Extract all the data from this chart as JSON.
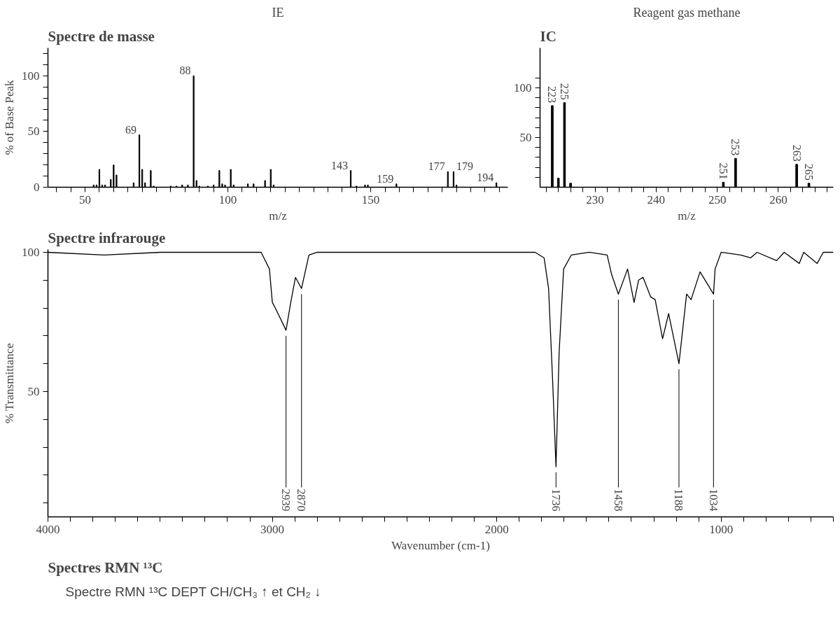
{
  "chart_data": [
    {
      "type": "bar",
      "title": "Spectre de masse",
      "subtitle": "IE",
      "xlabel": "m/z",
      "ylabel": "% of Base Peak",
      "x": [
        53,
        54,
        55,
        56,
        57,
        59,
        60,
        61,
        67,
        69,
        70,
        71,
        73,
        74,
        80,
        82,
        84,
        86,
        88,
        89,
        90,
        93,
        95,
        97,
        98,
        99,
        101,
        102,
        107,
        109,
        113,
        115,
        116,
        143,
        145,
        148,
        149,
        159,
        177,
        179,
        180,
        194
      ],
      "series": [
        {
          "color": "#000000",
          "values": [
            2,
            2,
            16,
            2,
            2,
            7,
            20,
            11,
            4,
            47,
            16,
            4,
            15,
            1,
            1,
            1,
            2,
            2,
            100,
            6,
            1,
            1,
            2,
            15,
            3,
            2,
            16,
            2,
            3,
            3,
            6,
            16,
            2,
            15,
            1,
            2,
            2,
            3,
            14,
            14,
            2,
            4
          ]
        }
      ],
      "value_labels": [
        null,
        null,
        null,
        null,
        null,
        null,
        null,
        null,
        null,
        "69",
        null,
        null,
        null,
        null,
        null,
        null,
        null,
        null,
        "88",
        null,
        null,
        null,
        null,
        null,
        null,
        null,
        null,
        null,
        null,
        null,
        null,
        null,
        null,
        "143",
        null,
        null,
        null,
        "159",
        "177",
        "179",
        null,
        "194"
      ],
      "xlim": [
        37,
        198
      ],
      "ylim": [
        0,
        125
      ],
      "xticks": [
        {
          "value": 40,
          "label": null
        },
        {
          "value": 45,
          "label": null
        },
        50,
        {
          "value": 55,
          "label": null
        },
        {
          "value": 60,
          "label": null
        },
        {
          "value": 65,
          "label": null
        },
        {
          "value": 70,
          "label": null
        },
        {
          "value": 75,
          "label": null
        },
        {
          "value": 80,
          "label": null
        },
        {
          "value": 85,
          "label": null
        },
        {
          "value": 90,
          "label": null
        },
        {
          "value": 95,
          "label": null
        },
        100,
        {
          "value": 105,
          "label": null
        },
        {
          "value": 110,
          "label": null
        },
        {
          "value": 115,
          "label": null
        },
        {
          "value": 120,
          "label": null
        },
        {
          "value": 125,
          "label": null
        },
        {
          "value": 130,
          "label": null
        },
        {
          "value": 135,
          "label": null
        },
        {
          "value": 140,
          "label": null
        },
        {
          "value": 145,
          "label": null
        },
        150,
        {
          "value": 155,
          "label": null
        },
        {
          "value": 160,
          "label": null
        },
        {
          "value": 165,
          "label": null
        },
        {
          "value": 170,
          "label": null
        },
        {
          "value": 175,
          "label": null
        },
        {
          "value": 180,
          "label": null
        },
        {
          "value": 185,
          "label": null
        },
        {
          "value": 190,
          "label": null
        },
        {
          "value": 195,
          "label": null
        }
      ],
      "yticks": [
        0,
        {
          "value": 10,
          "label": null
        },
        {
          "value": 20,
          "label": null
        },
        {
          "value": 30,
          "label": null
        },
        {
          "value": 40,
          "label": null
        },
        50,
        {
          "value": 60,
          "label": null
        },
        {
          "value": 70,
          "label": null
        },
        {
          "value": 80,
          "label": null
        },
        {
          "value": 90,
          "label": null
        },
        100,
        {
          "value": 110,
          "label": null
        },
        {
          "value": 120,
          "label": null
        }
      ]
    },
    {
      "type": "bar",
      "title": "IC",
      "subtitle": "Reagent gas methane",
      "xlabel": "m/z",
      "x": [
        223,
        224,
        225,
        226,
        251,
        253,
        263,
        265
      ],
      "series": [
        {
          "color": "#000000",
          "values": [
            82,
            9,
            85,
            4,
            5,
            29,
            23,
            4
          ]
        }
      ],
      "value_labels": [
        "223",
        null,
        "225",
        null,
        "251",
        "253",
        "263",
        "265"
      ],
      "xlim": [
        221,
        269
      ],
      "ylim": [
        0,
        140
      ],
      "xticks": [
        {
          "value": 222,
          "label": null
        },
        {
          "value": 224,
          "label": null
        },
        {
          "value": 226,
          "label": null
        },
        {
          "value": 228,
          "label": null
        },
        230,
        {
          "value": 232,
          "label": null
        },
        {
          "value": 234,
          "label": null
        },
        {
          "value": 236,
          "label": null
        },
        {
          "value": 238,
          "label": null
        },
        240,
        {
          "value": 242,
          "label": null
        },
        {
          "value": 244,
          "label": null
        },
        {
          "value": 246,
          "label": null
        },
        {
          "value": 248,
          "label": null
        },
        250,
        {
          "value": 252,
          "label": null
        },
        {
          "value": 254,
          "label": null
        },
        {
          "value": 256,
          "label": null
        },
        {
          "value": 258,
          "label": null
        },
        260,
        {
          "value": 262,
          "label": null
        },
        {
          "value": 264,
          "label": null
        },
        {
          "value": 266,
          "label": null
        },
        {
          "value": 268,
          "label": null
        }
      ],
      "yticks": [
        {
          "value": 10,
          "label": null
        },
        {
          "value": 20,
          "label": null
        },
        {
          "value": 30,
          "label": null
        },
        {
          "value": 40,
          "label": null
        },
        50,
        {
          "value": 60,
          "label": null
        },
        {
          "value": 70,
          "label": null
        },
        {
          "value": 80,
          "label": null
        },
        {
          "value": 90,
          "label": null
        },
        100,
        {
          "value": 110,
          "label": null
        }
      ]
    },
    {
      "type": "line",
      "title": "Spectre infrarouge",
      "xlabel": "Wavenumber (cm-1)",
      "ylabel": "% Transmittance",
      "x": [
        4000,
        3750,
        3500,
        3050,
        3013,
        3000,
        2987,
        2939,
        2918,
        2897,
        2870,
        2837,
        2800,
        2500,
        1829,
        1789,
        1769,
        1751,
        1736,
        1722,
        1702,
        1668,
        1588,
        1508,
        1488,
        1458,
        1417,
        1388,
        1368,
        1348,
        1314,
        1294,
        1261,
        1234,
        1188,
        1154,
        1134,
        1094,
        1034,
        1027,
        1000,
        913,
        869,
        840,
        753,
        719,
        652,
        632,
        572,
        545,
        500
      ],
      "series": [
        {
          "color": "#000000",
          "values": [
            100,
            99,
            100,
            100,
            94,
            82,
            80,
            72,
            82,
            91,
            87,
            99,
            100,
            100,
            100,
            98,
            87,
            54,
            23,
            64,
            94,
            99,
            100,
            99,
            92,
            85,
            94,
            82,
            90,
            91,
            84,
            83,
            69,
            78,
            60,
            85,
            83,
            93,
            85,
            94,
            100,
            99,
            98,
            100,
            97,
            100,
            96,
            100,
            96,
            100,
            100
          ]
        }
      ],
      "annotations": [
        {
          "text": "2939",
          "x": 2939,
          "y": 72
        },
        {
          "text": "2870",
          "x": 2870,
          "y": 87
        },
        {
          "text": "1736",
          "x": 1736,
          "y": 23
        },
        {
          "text": "1458",
          "x": 1458,
          "y": 85
        },
        {
          "text": "1188",
          "x": 1188,
          "y": 60
        },
        {
          "text": "1034",
          "x": 1034,
          "y": 85
        },
        "Spectres RMN ¹³C",
        "Spectre RMN ¹³C DEPT CH/CH₃ ↑ et CH₂ ↓"
      ],
      "xlim": [
        4000,
        500
      ],
      "ylim": [
        5,
        101
      ],
      "xticks": [
        4000,
        {
          "value": 3900,
          "label": null
        },
        {
          "value": 3800,
          "label": null
        },
        {
          "value": 3700,
          "label": null
        },
        {
          "value": 3600,
          "label": null
        },
        {
          "value": 3500,
          "label": null
        },
        {
          "value": 3400,
          "label": null
        },
        {
          "value": 3300,
          "label": null
        },
        {
          "value": 3200,
          "label": null
        },
        {
          "value": 3100,
          "label": null
        },
        3000,
        {
          "value": 2900,
          "label": null
        },
        {
          "value": 2800,
          "label": null
        },
        {
          "value": 2700,
          "label": null
        },
        {
          "value": 2600,
          "label": null
        },
        {
          "value": 2500,
          "label": null
        },
        {
          "value": 2400,
          "label": null
        },
        {
          "value": 2300,
          "label": null
        },
        {
          "value": 2200,
          "label": null
        },
        {
          "value": 2100,
          "label": null
        },
        2000,
        {
          "value": 1900,
          "label": null
        },
        {
          "value": 1800,
          "label": null
        },
        {
          "value": 1700,
          "label": null
        },
        {
          "value": 1600,
          "label": null
        },
        {
          "value": 1500,
          "label": null
        },
        {
          "value": 1400,
          "label": null
        },
        {
          "value": 1300,
          "label": null
        },
        {
          "value": 1200,
          "label": null
        },
        {
          "value": 1100,
          "label": null
        },
        1000,
        {
          "value": 900,
          "label": null
        },
        {
          "value": 800,
          "label": null
        },
        {
          "value": 700,
          "label": null
        },
        {
          "value": 600,
          "label": null
        },
        {
          "value": 500,
          "label": null
        }
      ],
      "yticks": [
        {
          "value": 10,
          "label": null
        },
        {
          "value": 20,
          "label": null
        },
        {
          "value": 30,
          "label": null
        },
        {
          "value": 40,
          "label": null
        },
        50,
        {
          "value": 60,
          "label": null
        },
        {
          "value": 70,
          "label": null
        },
        {
          "value": 80,
          "label": null
        },
        {
          "value": 90,
          "label": null
        },
        100
      ]
    }
  ]
}
